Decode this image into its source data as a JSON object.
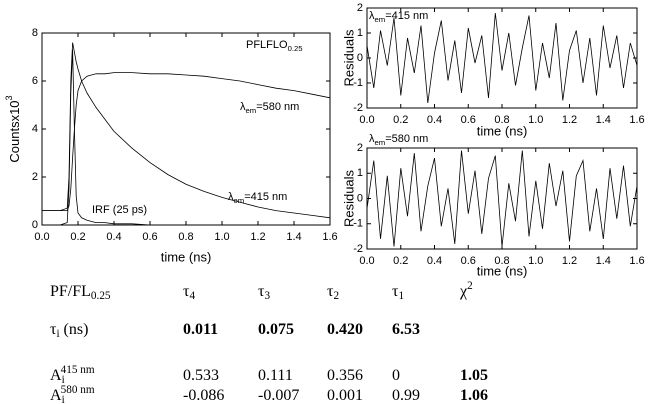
{
  "chart_data": [
    {
      "type": "line",
      "xlabel": "time (ns)",
      "ylabel": {
        "t": "Countsx10",
        "sup": "3"
      },
      "x": [
        0,
        0.05,
        0.1,
        0.14,
        0.15,
        0.16,
        0.17,
        0.18,
        0.19,
        0.2,
        0.22,
        0.25,
        0.3,
        0.35,
        0.4,
        0.5,
        0.6,
        0.7,
        0.8,
        0.9,
        1.0,
        1.1,
        1.2,
        1.3,
        1.4,
        1.5,
        1.6
      ],
      "series": [
        {
          "color": "#000000",
          "values": [
            0,
            0,
            0,
            0.1,
            1.5,
            5.5,
            7.3,
            4.0,
            1.2,
            0.5,
            0.3,
            0.2,
            0.1,
            0.1,
            0.05,
            0.05,
            0,
            0,
            0,
            0,
            0,
            0,
            0,
            0,
            0,
            0,
            0
          ]
        },
        {
          "color": "#000000",
          "values": [
            0.6,
            0.6,
            0.6,
            0.6,
            0.8,
            1.5,
            2.8,
            4.0,
            5.0,
            5.6,
            6.0,
            6.2,
            6.3,
            6.3,
            6.35,
            6.35,
            6.3,
            6.3,
            6.25,
            6.2,
            6.1,
            6.0,
            5.85,
            5.7,
            5.6,
            5.45,
            5.3
          ]
        },
        {
          "color": "#000000",
          "values": [
            0.6,
            0.6,
            0.6,
            0.7,
            2.0,
            6.0,
            7.6,
            7.2,
            6.8,
            6.5,
            6.0,
            5.5,
            4.9,
            4.4,
            3.9,
            3.2,
            2.6,
            2.1,
            1.7,
            1.4,
            1.15,
            0.95,
            0.75,
            0.6,
            0.5,
            0.4,
            0.3
          ]
        }
      ],
      "xlim": [
        0,
        1.6
      ],
      "ylim": [
        0,
        8
      ],
      "xticks": [
        {
          "value": 0,
          "label": "0.0"
        },
        0.2,
        0.4,
        0.6,
        0.8,
        {
          "value": 1,
          "label": "1.0"
        },
        1.2,
        1.4,
        1.6
      ],
      "yticks": [
        0,
        2,
        4,
        6,
        8
      ],
      "annotations": [
        {
          "t": "PFLFLO",
          "sub": "0.25"
        },
        {
          "t": "λ",
          "sub": "em",
          "rest": "=580 nm"
        },
        {
          "t": "λ",
          "sub": "em",
          "rest": "=415 nm"
        },
        {
          "t": "IRF (25 ps)"
        }
      ]
    },
    {
      "type": "line",
      "xlabel": "time (ns)",
      "ylabel": "Residuals",
      "x": [
        0,
        0.04,
        0.08,
        0.12,
        0.16,
        0.2,
        0.24,
        0.28,
        0.32,
        0.36,
        0.4,
        0.44,
        0.48,
        0.52,
        0.56,
        0.6,
        0.64,
        0.68,
        0.72,
        0.76,
        0.8,
        0.84,
        0.88,
        0.92,
        0.96,
        1,
        1.04,
        1.08,
        1.12,
        1.16,
        1.2,
        1.24,
        1.28,
        1.32,
        1.36,
        1.4,
        1.44,
        1.48,
        1.52,
        1.56,
        1.6
      ],
      "series": [
        {
          "color": "#000000",
          "values": [
            0.5,
            -1.2,
            1.1,
            -0.3,
            1.6,
            -1.5,
            0.8,
            -0.6,
            1.3,
            -1.8,
            0.2,
            1.5,
            -0.9,
            0.7,
            -1.4,
            1.2,
            -0.2,
            0.9,
            -1.6,
            1.8,
            -0.5,
            1.0,
            -1.1,
            0.4,
            1.7,
            -1.3,
            0.6,
            -0.8,
            1.4,
            -1.7,
            0.3,
            1.1,
            -1.0,
            0.8,
            -1.5,
            1.3,
            -0.4,
            0.9,
            -1.2,
            0.6,
            -0.3
          ]
        }
      ],
      "xlim": [
        0,
        1.6
      ],
      "ylim": [
        -2,
        2
      ],
      "xticks": [
        {
          "value": 0,
          "label": "0.0"
        },
        0.2,
        0.4,
        0.6,
        0.8,
        {
          "value": 1,
          "label": "1.0"
        },
        1.2,
        1.4,
        1.6
      ],
      "yticks": [
        -2,
        -1,
        0,
        1,
        2
      ],
      "annotations": [
        {
          "t": "λ",
          "sub": "em",
          "rest": "=415 nm"
        }
      ]
    },
    {
      "type": "line",
      "xlabel": "time (ns)",
      "ylabel": "Residuals",
      "x": [
        0,
        0.04,
        0.08,
        0.12,
        0.16,
        0.2,
        0.24,
        0.28,
        0.32,
        0.36,
        0.4,
        0.44,
        0.48,
        0.52,
        0.56,
        0.6,
        0.64,
        0.68,
        0.72,
        0.76,
        0.8,
        0.84,
        0.88,
        0.92,
        0.96,
        1,
        1.04,
        1.08,
        1.12,
        1.16,
        1.2,
        1.24,
        1.28,
        1.32,
        1.36,
        1.4,
        1.44,
        1.48,
        1.52,
        1.56,
        1.6
      ],
      "series": [
        {
          "color": "#000000",
          "values": [
            -0.4,
            1.5,
            -1.6,
            0.9,
            -1.9,
            1.2,
            -0.7,
            1.8,
            -1.3,
            0.5,
            1.6,
            -1.1,
            0.4,
            -1.8,
            1.9,
            -0.6,
            1.1,
            -1.4,
            0.8,
            1.7,
            -1.9,
            0.6,
            -0.9,
            1.9,
            -1.5,
            0.7,
            -1.2,
            1.4,
            -0.3,
            1.1,
            -1.7,
            0.9,
            1.5,
            -1.3,
            0.4,
            -1.6,
            1.2,
            -0.8,
            1.3,
            -1.1,
            0.5
          ]
        }
      ],
      "xlim": [
        0,
        1.6
      ],
      "ylim": [
        -2,
        2
      ],
      "xticks": [
        {
          "value": 0,
          "label": "0.0"
        },
        0.2,
        0.4,
        0.6,
        0.8,
        {
          "value": 1,
          "label": "1.0"
        },
        1.2,
        1.4,
        1.6
      ],
      "yticks": [
        -2,
        -1,
        0,
        1,
        2
      ],
      "annotations": [
        {
          "t": "λ",
          "sub": "em",
          "rest": "=580 nm"
        }
      ]
    }
  ],
  "table": {
    "rows": [
      [
        {
          "t": "PF/FL",
          "sub": "0.25"
        },
        {
          "t": "τ",
          "sub": "4"
        },
        {
          "t": "τ",
          "sub": "3"
        },
        {
          "t": "τ",
          "sub": "2"
        },
        {
          "t": "τ",
          "sub": "1"
        },
        {
          "t": "χ",
          "sup": "2"
        }
      ],
      [
        {
          "t": "τ",
          "sub": "i",
          "rest": " (ns)"
        },
        {
          "t": "0.011",
          "bold": true
        },
        {
          "t": "0.075",
          "bold": true
        },
        {
          "t": "0.420",
          "bold": true
        },
        {
          "t": "6.53",
          "bold": true
        }
      ],
      [
        {
          "t": "A",
          "sub": "i",
          "sup": "415 nm"
        },
        {
          "t": "0.533"
        },
        {
          "t": "0.111"
        },
        {
          "t": "0.356"
        },
        {
          "t": "0"
        },
        {
          "t": "1.05",
          "bold": true
        }
      ],
      [
        {
          "t": "A",
          "sub": "i",
          "sup": "580 nm"
        },
        {
          "t": "-0.086"
        },
        {
          "t": "-0.007"
        },
        {
          "t": "0.001"
        },
        {
          "t": "0.99"
        },
        {
          "t": "1.06",
          "bold": true
        }
      ]
    ]
  }
}
